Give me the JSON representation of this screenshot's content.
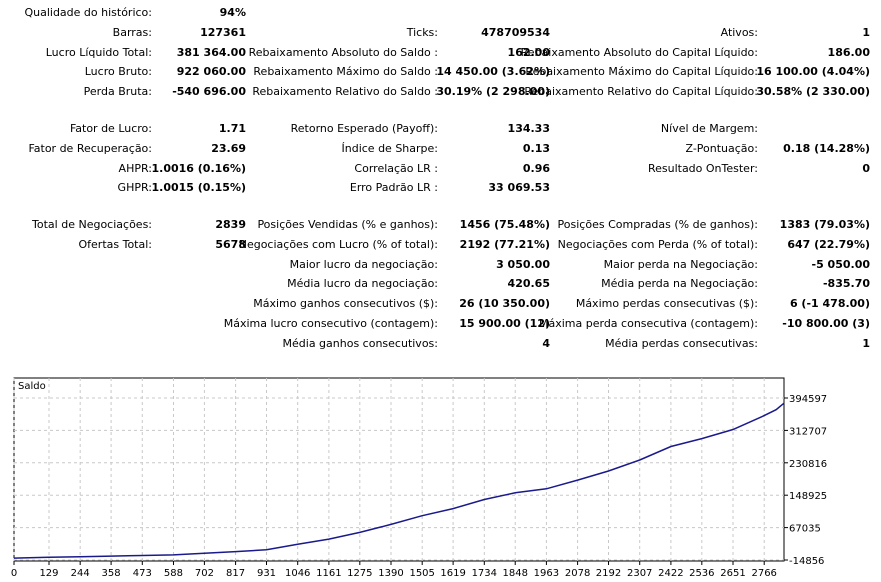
{
  "report": {
    "groups": [
      {
        "rows": [
          [
            [
              "Qualidade do histórico:",
              "94%"
            ],
            null,
            null
          ],
          [
            [
              "Barras:",
              "127361"
            ],
            [
              "Ticks:",
              "478709534"
            ],
            [
              "Ativos:",
              "1"
            ]
          ],
          [
            [
              "Lucro Líquido Total:",
              "381 364.00"
            ],
            [
              "Rebaixamento Absoluto do Saldo :",
              "162.00"
            ],
            [
              "Rebaixamento Absoluto do Capital Líquido:",
              "186.00"
            ]
          ],
          [
            [
              "Lucro Bruto:",
              "922 060.00"
            ],
            [
              "Rebaixamento Máximo do Saldo :",
              "14 450.00 (3.62%)"
            ],
            [
              "Rebaixamento Máximo do Capital Líquido:",
              "16 100.00 (4.04%)"
            ]
          ],
          [
            [
              "Perda Bruta:",
              "-540 696.00"
            ],
            [
              "Rebaixamento Relativo do Saldo :",
              "30.19% (2 298.00)"
            ],
            [
              "Rebaixamento Relativo do Capital Líquido:",
              "30.58% (2 330.00)"
            ]
          ]
        ]
      },
      {
        "rows": [
          [
            [
              "Fator de Lucro:",
              "1.71"
            ],
            [
              "Retorno Esperado (Payoff):",
              "134.33"
            ],
            [
              "Nível de Margem:",
              ""
            ]
          ],
          [
            [
              "Fator de Recuperação:",
              "23.69"
            ],
            [
              "Índice de Sharpe:",
              "0.13"
            ],
            [
              "Z-Pontuação:",
              "0.18 (14.28%)"
            ]
          ],
          [
            [
              "AHPR:",
              "1.0016 (0.16%)"
            ],
            [
              "Correlação LR :",
              "0.96"
            ],
            [
              "Resultado OnTester:",
              "0"
            ]
          ],
          [
            [
              "GHPR:",
              "1.0015 (0.15%)"
            ],
            [
              "Erro Padrão LR :",
              "33 069.53"
            ],
            null
          ]
        ]
      },
      {
        "rows": [
          [
            [
              "Total de Negociações:",
              "2839"
            ],
            [
              "Posições Vendidas (% e ganhos):",
              "1456 (75.48%)"
            ],
            [
              "Posições Compradas (% de ganhos):",
              "1383 (79.03%)"
            ]
          ],
          [
            [
              "Ofertas Total:",
              "5678"
            ],
            [
              "Negociações com Lucro (% of total):",
              "2192 (77.21%)"
            ],
            [
              "Negociações com Perda (% of total):",
              "647 (22.79%)"
            ]
          ],
          [
            null,
            [
              "Maior lucro da negociação:",
              "3 050.00"
            ],
            [
              "Maior perda na Negociação:",
              "-5 050.00"
            ]
          ],
          [
            null,
            [
              "Média lucro da negociação:",
              "420.65"
            ],
            [
              "Média perda na Negociação:",
              "-835.70"
            ]
          ],
          [
            null,
            [
              "Máximo ganhos consecutivos ($):",
              "26 (10 350.00)"
            ],
            [
              "Máximo perdas consecutivas ($):",
              "6 (-1 478.00)"
            ]
          ],
          [
            null,
            [
              "Máxima lucro consecutivo (contagem):",
              "15 900.00 (12)"
            ],
            [
              "Máxima perda consecutiva (contagem):",
              "-10 800.00 (3)"
            ]
          ],
          [
            null,
            [
              "Média ganhos consecutivos:",
              "4"
            ],
            [
              "Média perdas consecutivas:",
              "1"
            ]
          ]
        ]
      }
    ]
  },
  "chart_data": {
    "type": "line",
    "title": "Saldo",
    "x_ticks": [
      0,
      129,
      244,
      358,
      473,
      588,
      702,
      817,
      931,
      1046,
      1161,
      1275,
      1390,
      1505,
      1619,
      1734,
      1848,
      1963,
      2078,
      2192,
      2307,
      2422,
      2536,
      2651,
      2766
    ],
    "y_ticks": [
      -14856,
      67035,
      148925,
      230816,
      312707,
      394597
    ],
    "xlim": [
      0,
      2839
    ],
    "ylim": [
      -14856,
      394597
    ],
    "grid": true,
    "line_color": "#1a1a8c",
    "series": [
      {
        "x": [
          0,
          129,
          244,
          358,
          473,
          588,
          702,
          817,
          931,
          1046,
          1161,
          1275,
          1390,
          1505,
          1619,
          1734,
          1848,
          1963,
          2078,
          2192,
          2307,
          2422,
          2536,
          2651,
          2766,
          2810,
          2839
        ],
        "y": [
          -10000,
          -8000,
          -6500,
          -5000,
          -3500,
          -2000,
          2000,
          6500,
          11000,
          25000,
          38000,
          55000,
          75000,
          97000,
          115000,
          138000,
          155000,
          165000,
          187000,
          210000,
          238000,
          272000,
          292000,
          315000,
          350000,
          365000,
          381364
        ]
      }
    ]
  }
}
